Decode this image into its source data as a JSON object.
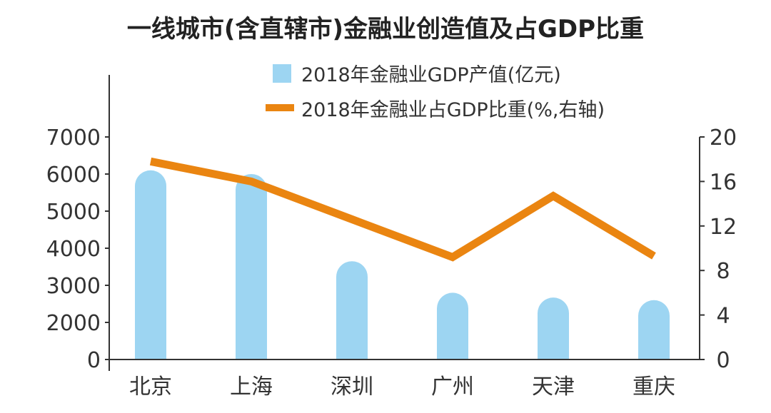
{
  "chart_data": {
    "type": "bar+line",
    "title": "一线城市(含直辖市)金融业创造值及占GDP比重",
    "categories": [
      "北京",
      "上海",
      "深圳",
      "广州",
      "天津",
      "重庆"
    ],
    "series": [
      {
        "name": "2018年金融业GDP产值(亿元)",
        "type": "bar",
        "axis": "left",
        "color": "#9dd5f2",
        "values": [
          6100,
          6000,
          3650,
          2800,
          2670,
          2600
        ]
      },
      {
        "name": "2018年金融业占GDP比重(%,右轴)",
        "type": "line",
        "axis": "right",
        "color": "#ea8511",
        "values": [
          17.8,
          16.0,
          12.6,
          9.2,
          14.7,
          9.3
        ]
      }
    ],
    "left_axis": {
      "ticks": [
        "0",
        "2000",
        "3000",
        "4000",
        "5000",
        "6000",
        "7000"
      ],
      "tick_values": [
        1000,
        2000,
        3000,
        4000,
        5000,
        6000,
        7000
      ],
      "range": [
        1000,
        7000
      ],
      "note": "axis break: 0 shown at baseline"
    },
    "right_axis": {
      "ticks": [
        "0",
        "4",
        "8",
        "12",
        "16",
        "20"
      ],
      "tick_values": [
        0,
        4,
        8,
        12,
        16,
        20
      ],
      "range": [
        0,
        20
      ]
    },
    "legend_position": "top-right",
    "grid": false
  }
}
